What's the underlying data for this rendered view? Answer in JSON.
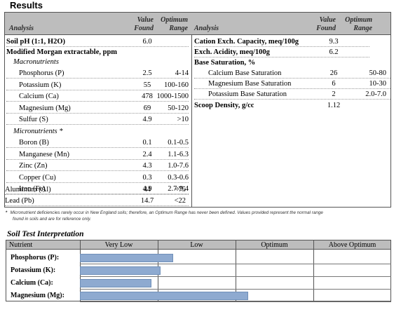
{
  "title": "Results",
  "header": {
    "analysis": "Analysis",
    "value_line1": "Value",
    "value_line2": "Found",
    "optimum_line1": "Optimum",
    "optimum_line2": "Range"
  },
  "left": {
    "soil_ph": {
      "label": "Soil pH (1:1, H2O)",
      "value": "6.0",
      "range": ""
    },
    "modified_morgan": "Modified Morgan extractable, ppm",
    "macronutrients_label": "Macronutrients",
    "macronutrients": [
      {
        "label": "Phosphorus (P)",
        "value": "2.5",
        "range": "4-14"
      },
      {
        "label": "Potassium (K)",
        "value": "55",
        "range": "100-160"
      },
      {
        "label": "Calcium (Ca)",
        "value": "478",
        "range": "1000-1500"
      },
      {
        "label": "Magnesium (Mg)",
        "value": "69",
        "range": "50-120"
      },
      {
        "label": "Sulfur (S)",
        "value": "4.9",
        "range": ">10"
      }
    ],
    "micronutrients_label": "Micronutrients *",
    "micronutrients": [
      {
        "label": "Boron (B)",
        "value": "0.1",
        "range": "0.1-0.5"
      },
      {
        "label": "Manganese (Mn)",
        "value": "2.4",
        "range": "1.1-6.3"
      },
      {
        "label": "Zinc (Zn)",
        "value": "4.3",
        "range": "1.0-7.6"
      },
      {
        "label": "Copper (Cu)",
        "value": "0.3",
        "range": "0.3-0.6"
      },
      {
        "label": "Iron (Fe)",
        "value": "4.9",
        "range": "2.7-9.4"
      }
    ],
    "aluminum": {
      "label": "Aluminum (Al)",
      "value": "44",
      "range": "<75"
    },
    "lead": {
      "label": "Lead (Pb)",
      "value": "14.7",
      "range": "<22"
    }
  },
  "right": {
    "cec": {
      "label": "Cation Exch. Capacity, meq/100g",
      "value": "9.3",
      "range": ""
    },
    "acidity": {
      "label": "Exch. Acidity, meq/100g",
      "value": "6.2",
      "range": ""
    },
    "base_sat_label": "Base Saturation, %",
    "base_sat": [
      {
        "label": "Calcium Base Saturation",
        "value": "26",
        "range": "50-80"
      },
      {
        "label": "Magnesium Base Saturation",
        "value": "6",
        "range": "10-30"
      },
      {
        "label": "Potassium Base Saturation",
        "value": "2",
        "range": "2.0-7.0"
      }
    ],
    "scoop": {
      "label": "Scoop Density, g/cc",
      "value": "1.12",
      "range": ""
    }
  },
  "footnote": {
    "star": "*",
    "line1": "Micronutrient deficiencies rarely occur in New England soils; therefore, an Optimum Range has never been defined. Values provided represent the normal range",
    "line2": "found in soils and are for reference only."
  },
  "interpretation": {
    "title": "Soil Test Interpretation",
    "headers": [
      "Nutrient",
      "Very Low",
      "Low",
      "Optimum",
      "Above Optimum"
    ],
    "rows": [
      {
        "label": "Phosphorus (P):",
        "level": 0.3
      },
      {
        "label": "Potassium (K):",
        "level": 0.26
      },
      {
        "label": "Calcium (Ca):",
        "level": 0.23
      },
      {
        "label": "Magnesium (Mg):",
        "level": 0.54
      }
    ]
  }
}
